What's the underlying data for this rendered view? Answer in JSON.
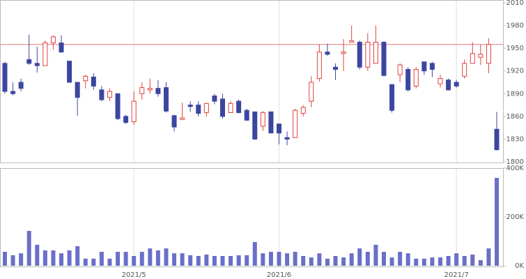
{
  "chart_data": {
    "type": "candlestick",
    "categories": [
      null,
      null,
      null,
      null,
      null,
      null,
      null,
      null,
      null,
      null,
      null,
      null,
      null,
      null,
      null,
      null,
      "2021/5",
      null,
      null,
      null,
      null,
      null,
      null,
      null,
      null,
      null,
      null,
      null,
      null,
      null,
      null,
      null,
      null,
      null,
      "2021/6",
      null,
      null,
      null,
      null,
      null,
      null,
      null,
      null,
      null,
      null,
      null,
      null,
      null,
      null,
      null,
      null,
      null,
      null,
      null,
      null,
      null,
      "2021/7",
      null,
      null,
      null,
      null,
      null
    ],
    "open": [
      1930,
      1893,
      1905,
      1935,
      1930,
      1927,
      1957,
      1957,
      1933,
      1905,
      1907,
      1912,
      1895,
      1885,
      1890,
      1860,
      1853,
      1890,
      1895,
      1897,
      1898,
      1861,
      1856,
      1875,
      1875,
      1865,
      1887,
      1883,
      1865,
      1880,
      1868,
      1866,
      1847,
      1866,
      1850,
      1832,
      1832,
      1864,
      1880,
      1910,
      1945,
      1925,
      1943,
      1958,
      1958,
      1925,
      1930,
      1958,
      1902,
      1915,
      1922,
      1900,
      1932,
      1930,
      1903,
      1908,
      1905,
      1913,
      1930,
      1938,
      1930,
      1843
    ],
    "high": [
      1932,
      1905,
      1910,
      1968,
      1952,
      1960,
      1967,
      1967,
      1933,
      1905,
      1915,
      1917,
      1900,
      1897,
      1890,
      1862,
      1893,
      1905,
      1910,
      1908,
      1905,
      1862,
      1878,
      1880,
      1880,
      1878,
      1890,
      1890,
      1880,
      1882,
      1870,
      1866,
      1867,
      1866,
      1850,
      1840,
      1870,
      1875,
      1913,
      1955,
      1956,
      1930,
      1962,
      1980,
      1960,
      1970,
      1980,
      1959,
      1902,
      1930,
      1925,
      1925,
      1932,
      1932,
      1915,
      1910,
      1908,
      1935,
      1958,
      1955,
      1963,
      1866
    ],
    "low": [
      1890,
      1888,
      1893,
      1928,
      1918,
      1927,
      1948,
      1944,
      1905,
      1861,
      1897,
      1895,
      1880,
      1880,
      1855,
      1850,
      1849,
      1882,
      1890,
      1886,
      1865,
      1840,
      1855,
      1866,
      1860,
      1860,
      1876,
      1857,
      1865,
      1864,
      1854,
      1829,
      1841,
      1838,
      1823,
      1822,
      1832,
      1860,
      1872,
      1906,
      1940,
      1908,
      1920,
      1958,
      1922,
      1920,
      1930,
      1913,
      1865,
      1905,
      1893,
      1897,
      1915,
      1912,
      1898,
      1894,
      1898,
      1910,
      1930,
      1928,
      1917,
      1815
    ],
    "close": [
      1893,
      1890,
      1897,
      1930,
      1927,
      1957,
      1965,
      1945,
      1905,
      1885,
      1913,
      1900,
      1882,
      1893,
      1857,
      1852,
      1880,
      1898,
      1897,
      1890,
      1867,
      1846,
      1858,
      1873,
      1864,
      1877,
      1880,
      1860,
      1877,
      1865,
      1855,
      1830,
      1865,
      1838,
      1838,
      1830,
      1868,
      1872,
      1905,
      1945,
      1942,
      1922,
      1945,
      1960,
      1925,
      1958,
      1958,
      1914,
      1868,
      1928,
      1895,
      1922,
      1920,
      1922,
      1910,
      1895,
      1900,
      1930,
      1943,
      1942,
      1955,
      1816
    ],
    "up_color": "#e0403c",
    "down_color": "#3c46a0",
    "ylim": [
      1800,
      2010
    ],
    "yticks": [
      1800,
      1830,
      1860,
      1890,
      1920,
      1950,
      1980,
      2010
    ],
    "reference_line": 1955,
    "reference_color": "#e87878",
    "volume": {
      "color": "#6a6fc8",
      "values": [
        57000,
        43000,
        51000,
        143000,
        86000,
        63000,
        63000,
        51000,
        63000,
        80000,
        29000,
        29000,
        57000,
        29000,
        57000,
        57000,
        40000,
        57000,
        71000,
        63000,
        71000,
        51000,
        51000,
        43000,
        40000,
        46000,
        40000,
        40000,
        40000,
        43000,
        43000,
        97000,
        51000,
        57000,
        57000,
        51000,
        57000,
        40000,
        34000,
        51000,
        29000,
        40000,
        34000,
        51000,
        71000,
        57000,
        86000,
        57000,
        34000,
        57000,
        51000,
        29000,
        29000,
        34000,
        34000,
        40000,
        51000,
        40000,
        46000,
        23000,
        71000,
        360000
      ],
      "ylim": [
        0,
        400000
      ],
      "yticks": [
        {
          "value": 0,
          "label": "0K"
        },
        {
          "value": 200000,
          "label": "200K"
        },
        {
          "value": 400000,
          "label": "400K"
        }
      ]
    }
  }
}
